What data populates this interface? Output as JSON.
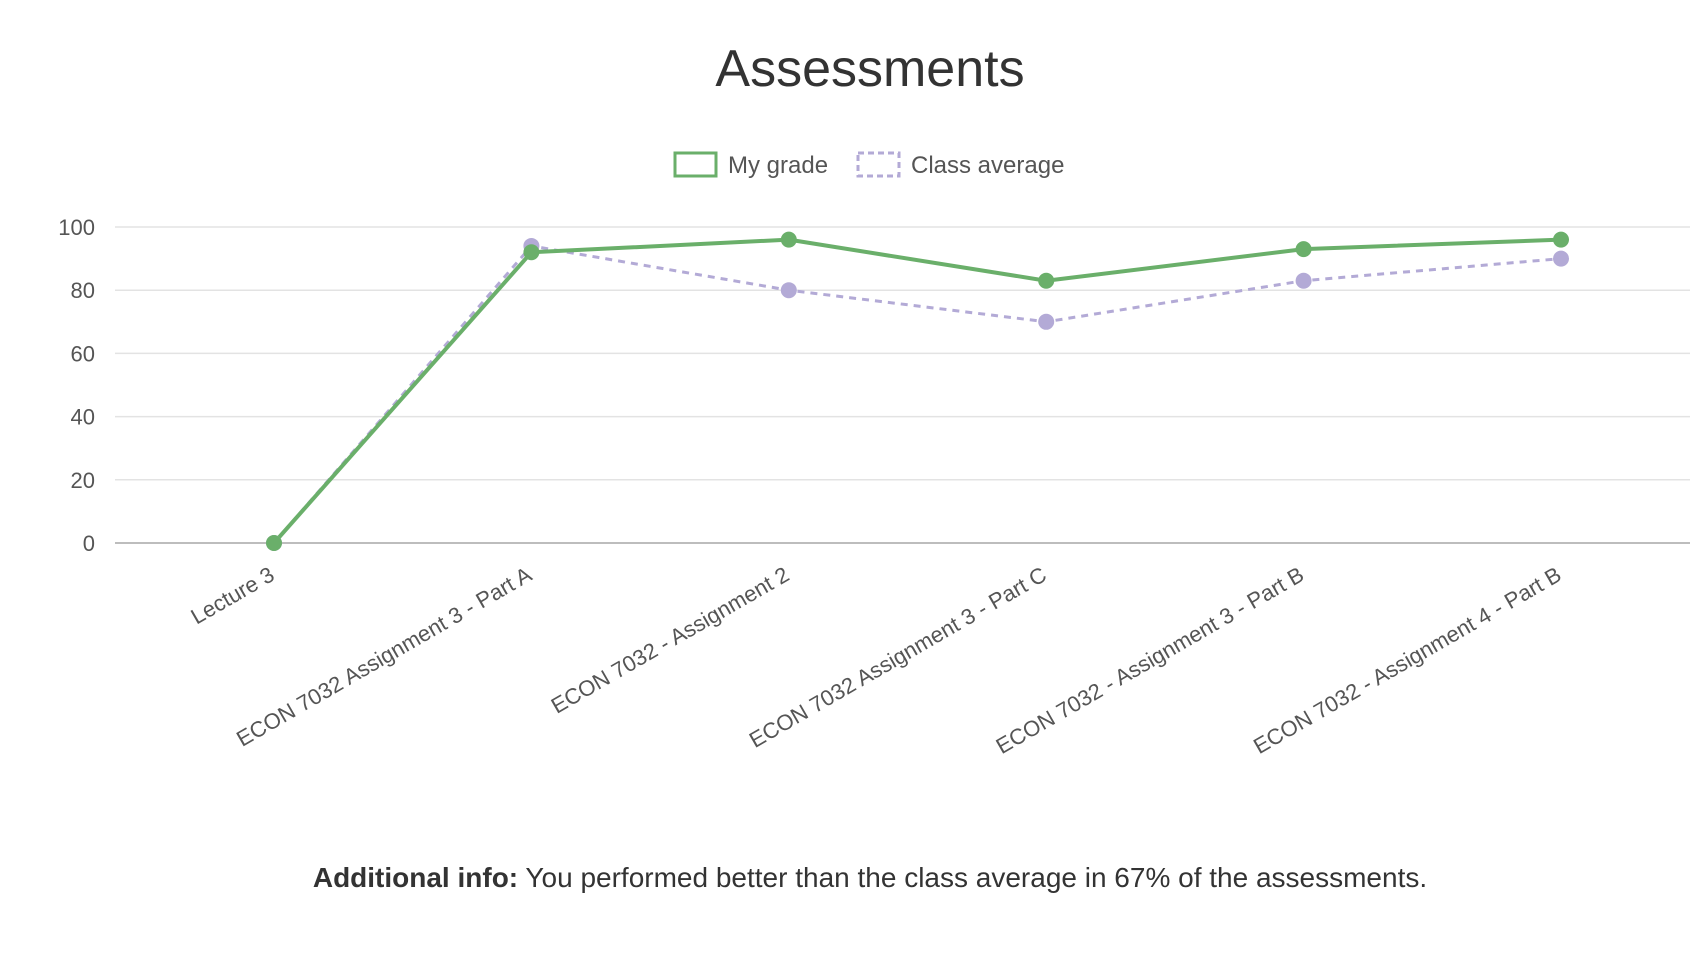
{
  "chart_data": {
    "type": "line",
    "title": "Assessments",
    "categories": [
      "Lecture 3",
      "ECON 7032 Assignment 3 - Part A",
      "ECON 7032 - Assignment 2",
      "ECON 7032 Assignment 3 - Part C",
      "ECON 7032 - Assignment 3 - Part B",
      "ECON 7032 - Assignment 4 - Part B"
    ],
    "series": [
      {
        "name": "My grade",
        "values": [
          0,
          92,
          96,
          83,
          93,
          96
        ],
        "color": "#6aaf6a",
        "style": "solid"
      },
      {
        "name": "Class average",
        "values": [
          0,
          94,
          80,
          70,
          83,
          90
        ],
        "color": "#b3aad6",
        "style": "dashed"
      }
    ],
    "yticks": [
      0,
      20,
      40,
      60,
      80,
      100
    ],
    "ylim": [
      0,
      100
    ],
    "grid": true,
    "legend_position": "top"
  },
  "footer": {
    "label": "Additional info:",
    "text": "You performed better than the class average in 67% of the assessments."
  }
}
